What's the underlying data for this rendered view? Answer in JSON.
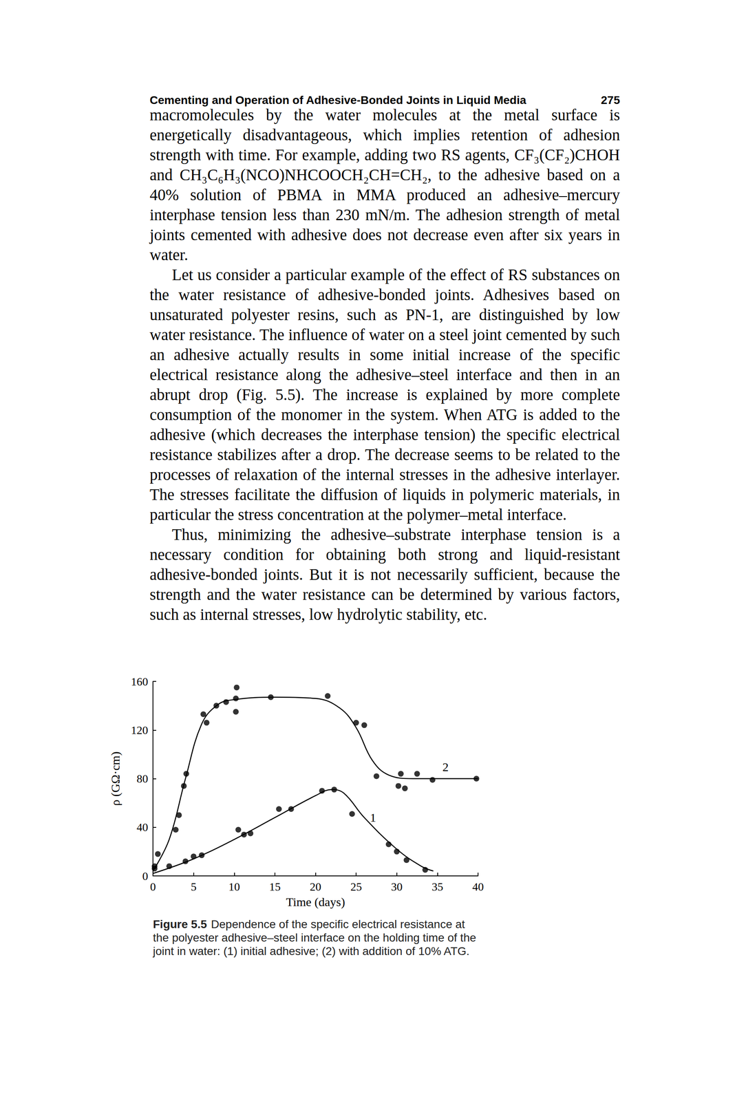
{
  "page": {
    "header": {
      "title": "Cementing and Operation of Adhesive-Bonded Joints in Liquid Media",
      "page": "275"
    },
    "paragraphs": [
      {
        "indent": false,
        "text": "macromolecules by the water molecules at the metal surface is energetically disadvantageous, which implies retention of adhesion strength with time. For example, adding two RS agents, CF₃(CF₂)CHOH and CH₃C₆H₃(NCO)NHCOOCH₂CH=CH₂, to the adhesive based on a 40% solution of PBMA in MMA produced an adhesive–mercury interphase tension less than 230 mN/m. The adhesion strength of metal joints cemented with adhesive does not decrease even after six years in water."
      },
      {
        "indent": true,
        "text": "Let us consider a particular example of the effect of RS substances on the water resistance of adhesive-bonded joints. Adhesives based on unsaturated polyester resins, such as PN-1, are distinguished by low water resistance. The influence of water on a steel joint cemented by such an adhesive actually results in some initial increase of the specific electrical resistance along the adhesive–steel interface and then in an abrupt drop (Fig. 5.5). The increase is explained by more complete consumption of the monomer in the system. When ATG is added to the adhesive (which decreases the interphase tension) the specific electrical resistance stabilizes after a drop. The decrease seems to be related to the processes of relaxation of the internal stresses in the adhesive interlayer. The stresses facilitate the diffusion of liquids in polymeric materials, in particular the stress concentration at the polymer–metal interface."
      },
      {
        "indent": true,
        "text": "Thus, minimizing the adhesive–substrate interphase tension is a necessary condition for obtaining both strong and liquid-resistant adhesive-bonded joints. But it is not necessarily sufficient, because the strength and the water resistance can be determined by various factors, such as internal stresses, low hydrolytic stability, etc."
      }
    ],
    "figure_caption": {
      "label": "Figure 5.5",
      "text": "Dependence of the specific electrical resistance at the polyester adhesive–steel interface on the holding time of the joint in water: (1) initial adhesive; (2) with addition of 10% ATG."
    }
  },
  "chart_data": {
    "type": "scatter",
    "x_label": "Time (days)",
    "y_label": "ρ (GΩ·cm)",
    "xlim": [
      0,
      40
    ],
    "xticks": [
      0,
      5,
      10,
      15,
      20,
      25,
      30,
      35,
      40
    ],
    "ylim": [
      0,
      160
    ],
    "yticks": [
      0,
      40,
      80,
      120,
      160
    ],
    "grid": false,
    "marker": "circle",
    "series": [
      {
        "name": "1",
        "color": "#000000",
        "x": [
          0.2,
          2,
          4,
          5,
          6,
          10.5,
          11.2,
          12,
          15.5,
          17,
          20.8,
          22.3,
          24.5,
          29,
          30,
          31.2,
          33.5
        ],
        "values": [
          6,
          8,
          12,
          16,
          17,
          38,
          34,
          35,
          55,
          55,
          70,
          71,
          51,
          26,
          20,
          13,
          5
        ],
        "curve": {
          "x": [
            0,
            5,
            10,
            15,
            20,
            22,
            23.5,
            26,
            30,
            33,
            34.5
          ],
          "values": [
            2,
            14,
            30,
            48,
            66,
            71,
            68,
            48,
            22,
            8,
            4
          ]
        }
      },
      {
        "name": "2",
        "color": "#000000",
        "x": [
          0.2,
          0.6,
          2.8,
          3.2,
          3.8,
          4.1,
          6.2,
          6.6,
          7.8,
          9,
          10.2,
          10.2,
          10.3,
          14.5,
          21.5,
          25,
          26,
          27.5,
          30.5,
          31,
          30.2,
          32.5,
          34.4,
          39.8
        ],
        "values": [
          8,
          18,
          38,
          50,
          74,
          84,
          133,
          126,
          140,
          143,
          135,
          146,
          155,
          147,
          148,
          126,
          124,
          82,
          84,
          72,
          74,
          84,
          79,
          80
        ],
        "curve": {
          "x": [
            0,
            2,
            4,
            6,
            8,
            10,
            15,
            20,
            23,
            25,
            27,
            29,
            32,
            36,
            40
          ],
          "values": [
            4,
            30,
            80,
            125,
            141,
            145,
            147,
            146,
            138,
            122,
            95,
            83,
            80,
            80,
            80
          ]
        }
      }
    ]
  }
}
